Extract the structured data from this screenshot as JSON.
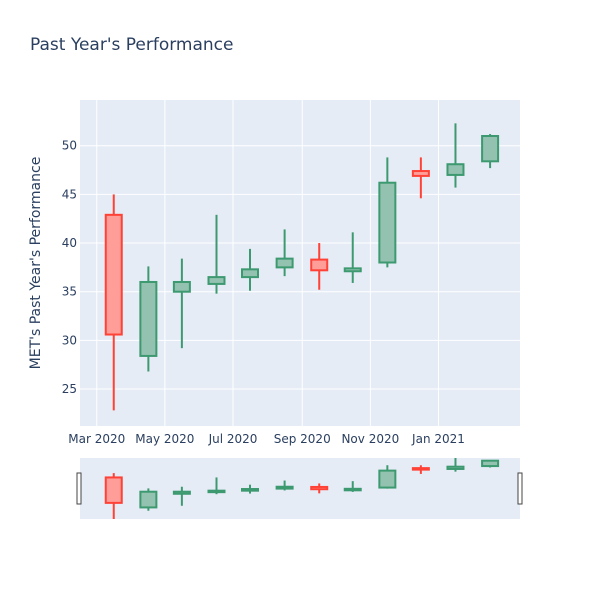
{
  "chart_data": {
    "type": "candlestick",
    "title": "Past Year's Performance",
    "ylabel": "MET's Past Year's Performance",
    "xlabel": "",
    "ylim": [
      21.2,
      54.7
    ],
    "y_ticks": [
      25,
      30,
      35,
      40,
      45,
      50
    ],
    "x_range": [
      "2020-02-15",
      "2021-03-15"
    ],
    "x_ticks": [
      {
        "date": "2020-03-01",
        "label": "Mar 2020"
      },
      {
        "date": "2020-05-01",
        "label": "May 2020"
      },
      {
        "date": "2020-07-01",
        "label": "Jul 2020"
      },
      {
        "date": "2020-09-01",
        "label": "Sep 2020"
      },
      {
        "date": "2020-11-01",
        "label": "Nov 2020"
      },
      {
        "date": "2021-01-01",
        "label": "Jan 2021"
      }
    ],
    "grid": true,
    "rangeslider": true,
    "colors": {
      "increasing_line": "#3d9970",
      "increasing_fill": "#93c2b0",
      "decreasing_line": "#ff4136",
      "decreasing_fill": "#ff9e99",
      "plot_bg": "#e5ecf6",
      "grid": "#ffffff",
      "text": "#2a3f5f"
    },
    "candles": [
      {
        "date": "2020-03-01",
        "open": 42.9,
        "high": 45.0,
        "low": 22.8,
        "close": 30.6
      },
      {
        "date": "2020-04-01",
        "open": 28.4,
        "high": 37.6,
        "low": 26.8,
        "close": 36.0
      },
      {
        "date": "2020-05-01",
        "open": 35.0,
        "high": 38.4,
        "low": 29.2,
        "close": 36.0
      },
      {
        "date": "2020-06-01",
        "open": 35.8,
        "high": 42.9,
        "low": 34.8,
        "close": 36.5
      },
      {
        "date": "2020-07-01",
        "open": 36.5,
        "high": 39.4,
        "low": 35.1,
        "close": 37.3
      },
      {
        "date": "2020-08-01",
        "open": 37.5,
        "high": 41.4,
        "low": 36.6,
        "close": 38.4
      },
      {
        "date": "2020-09-01",
        "open": 38.3,
        "high": 40.0,
        "low": 35.2,
        "close": 37.2
      },
      {
        "date": "2020-10-01",
        "open": 37.1,
        "high": 41.1,
        "low": 35.9,
        "close": 37.4
      },
      {
        "date": "2020-11-01",
        "open": 38.0,
        "high": 48.8,
        "low": 37.5,
        "close": 46.2
      },
      {
        "date": "2020-12-01",
        "open": 47.4,
        "high": 48.8,
        "low": 44.6,
        "close": 46.9
      },
      {
        "date": "2021-01-01",
        "open": 47.0,
        "high": 52.3,
        "low": 45.7,
        "close": 48.1
      },
      {
        "date": "2021-02-01",
        "open": 48.4,
        "high": 51.2,
        "low": 47.7,
        "close": 51.0
      }
    ]
  }
}
